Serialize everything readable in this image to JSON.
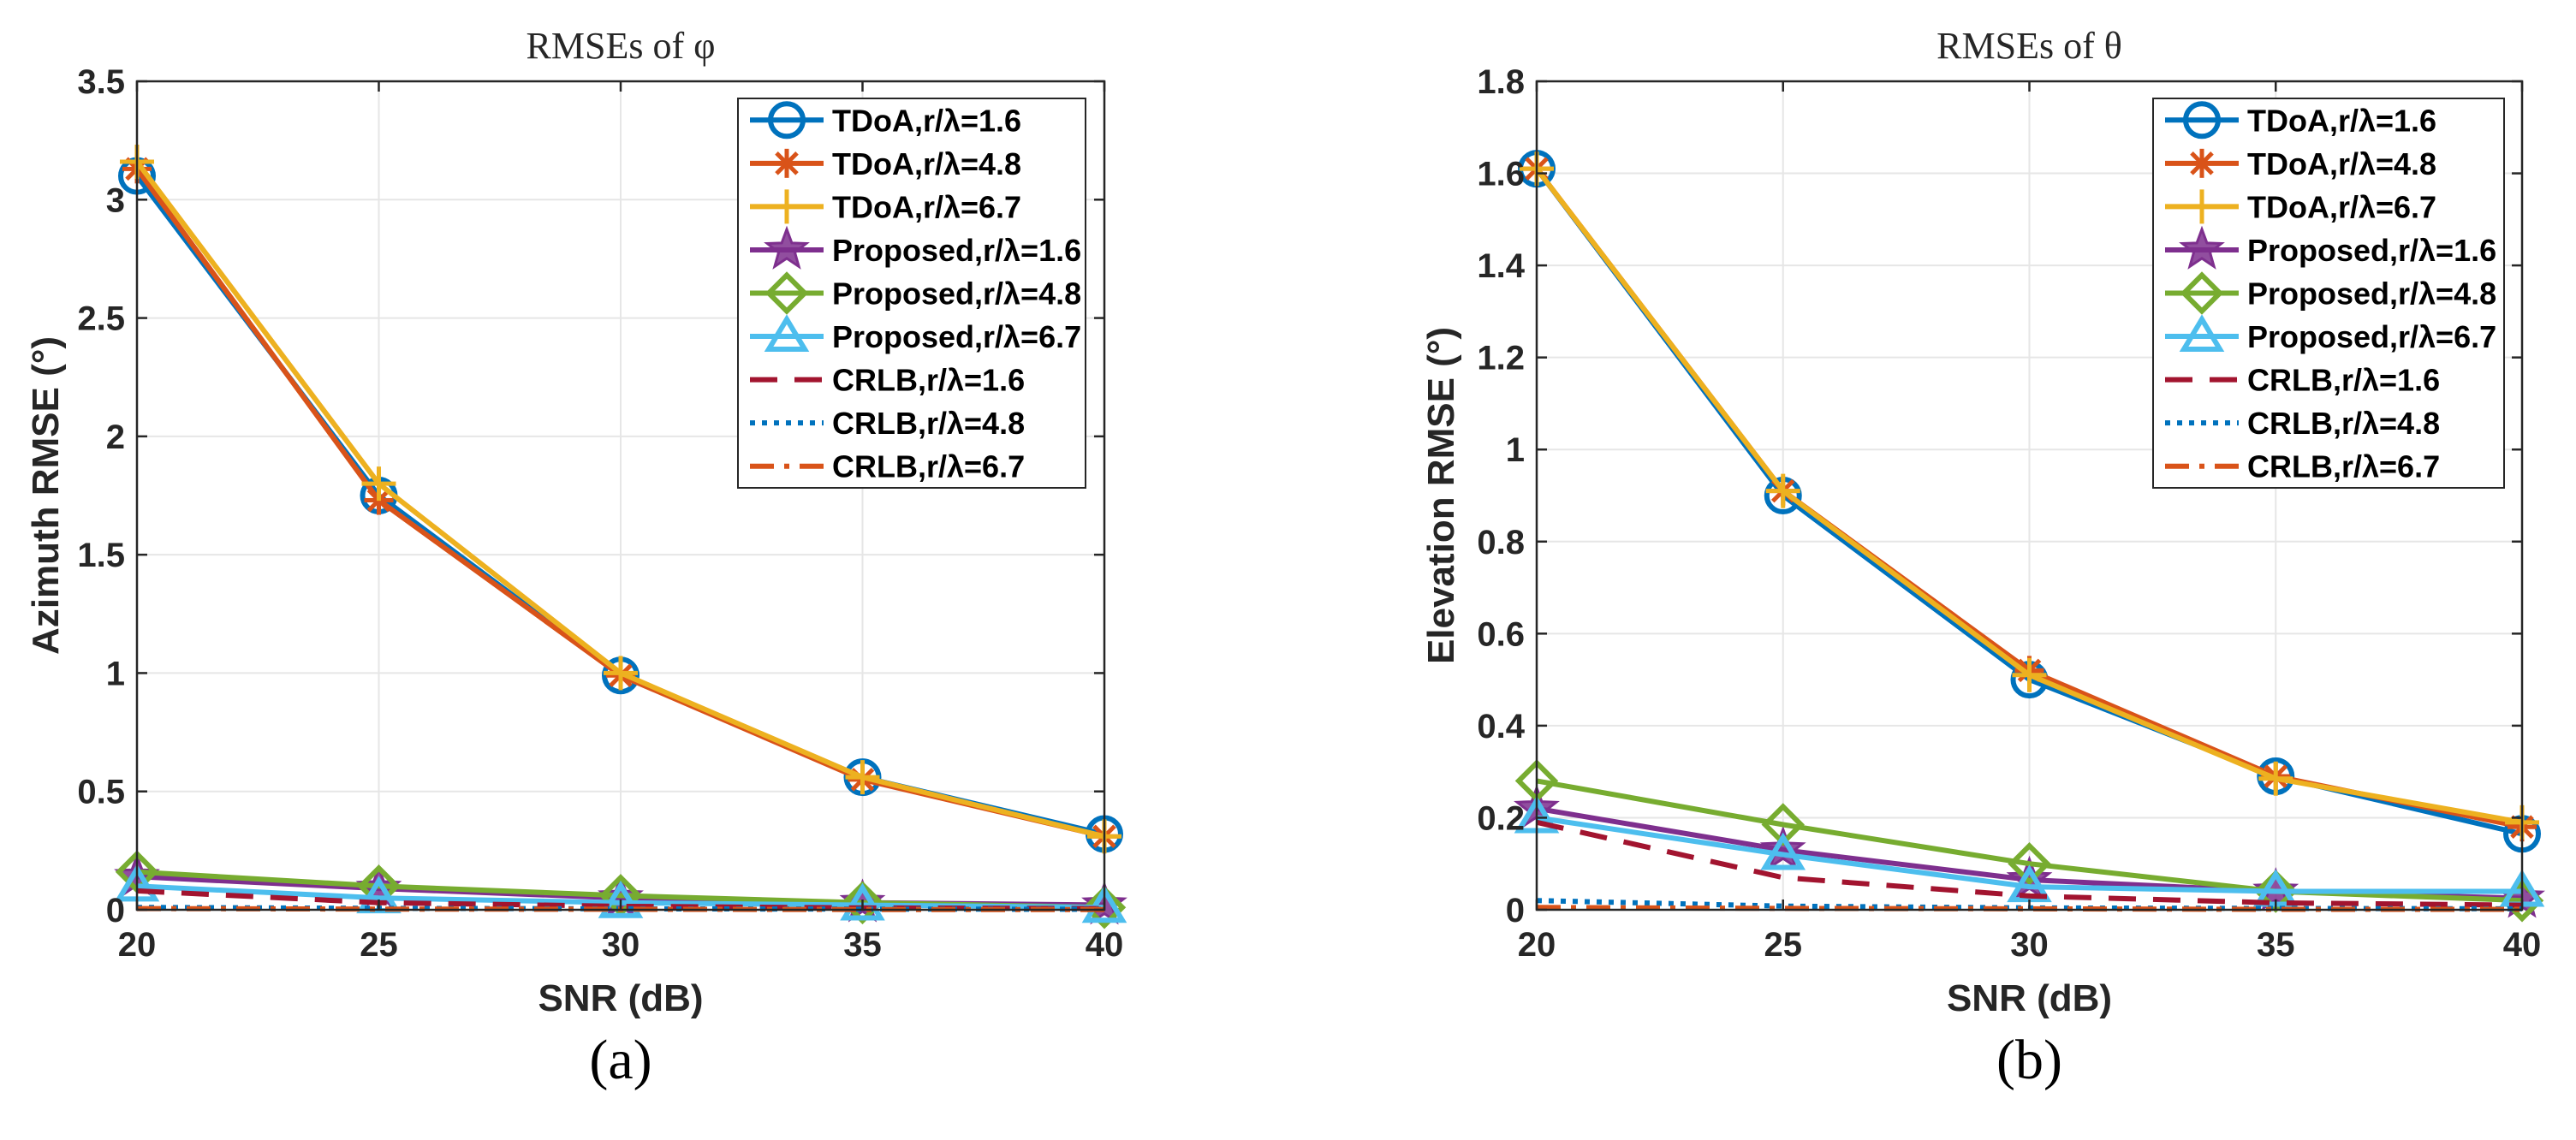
{
  "chart_data": [
    {
      "type": "line",
      "panel_label": "(a)",
      "title": "RMSEs of φ",
      "xlabel": "SNR (dB)",
      "ylabel": "Azimuth RMSE (°)",
      "x": [
        20,
        25,
        30,
        35,
        40
      ],
      "xticks": [
        "20",
        "25",
        "30",
        "35",
        "40"
      ],
      "xlim": [
        20,
        40
      ],
      "yticks": [
        "0",
        "0.5",
        "1",
        "1.5",
        "2",
        "2.5",
        "3",
        "3.5"
      ],
      "ytick_values": [
        0,
        0.5,
        1,
        1.5,
        2,
        2.5,
        3,
        3.5
      ],
      "ylim": [
        0,
        3.5
      ],
      "grid": true,
      "legend_position": "top-right",
      "series": [
        {
          "name": "TDoA,r/λ=1.6",
          "values": [
            3.1,
            1.75,
            0.99,
            0.56,
            0.32
          ],
          "color": "#0072BD",
          "marker": "circle",
          "dash": "solid"
        },
        {
          "name": "TDoA,r/λ=4.8",
          "values": [
            3.13,
            1.73,
            0.99,
            0.55,
            0.31
          ],
          "color": "#D95319",
          "marker": "asterisk",
          "dash": "solid"
        },
        {
          "name": "TDoA,r/λ=6.7",
          "values": [
            3.16,
            1.8,
            1.0,
            0.56,
            0.31
          ],
          "color": "#EDB120",
          "marker": "plus",
          "dash": "solid"
        },
        {
          "name": "Proposed,r/λ=1.6",
          "values": [
            0.14,
            0.09,
            0.05,
            0.03,
            0.02
          ],
          "color": "#7E2F8E",
          "marker": "star",
          "dash": "solid"
        },
        {
          "name": "Proposed,r/λ=4.8",
          "values": [
            0.16,
            0.1,
            0.06,
            0.03,
            0.01
          ],
          "color": "#77AC30",
          "marker": "diamond",
          "dash": "solid"
        },
        {
          "name": "Proposed,r/λ=6.7",
          "values": [
            0.1,
            0.05,
            0.03,
            0.02,
            0.01
          ],
          "color": "#4DBEEE",
          "marker": "triangle",
          "dash": "solid"
        },
        {
          "name": "CRLB,r/λ=1.6",
          "values": [
            0.08,
            0.03,
            0.015,
            0.008,
            0.005
          ],
          "color": "#A2142F",
          "marker": "none",
          "dash": "dashed"
        },
        {
          "name": "CRLB,r/λ=4.8",
          "values": [
            0.01,
            0.006,
            0.004,
            0.003,
            0.002
          ],
          "color": "#0072BD",
          "marker": "none",
          "dash": "dotted"
        },
        {
          "name": "CRLB,r/λ=6.7",
          "values": [
            0.005,
            0.003,
            0.002,
            0.001,
            0.001
          ],
          "color": "#D95319",
          "marker": "none",
          "dash": "dashdot"
        }
      ]
    },
    {
      "type": "line",
      "panel_label": "(b)",
      "title": "RMSEs of θ",
      "xlabel": "SNR (dB)",
      "ylabel": "Elevation RMSE (°)",
      "x": [
        20,
        25,
        30,
        35,
        40
      ],
      "xticks": [
        "20",
        "25",
        "30",
        "35",
        "40"
      ],
      "xlim": [
        20,
        40
      ],
      "yticks": [
        "0",
        "0.2",
        "0.4",
        "0.6",
        "0.8",
        "1",
        "1.2",
        "1.4",
        "1.6",
        "1.8"
      ],
      "ytick_values": [
        0,
        0.2,
        0.4,
        0.6,
        0.8,
        1.0,
        1.2,
        1.4,
        1.6,
        1.8
      ],
      "ylim": [
        0,
        1.8
      ],
      "grid": true,
      "legend_position": "top-right",
      "series": [
        {
          "name": "TDoA,r/λ=1.6",
          "values": [
            1.61,
            0.9,
            0.5,
            0.29,
            0.165
          ],
          "color": "#0072BD",
          "marker": "circle",
          "dash": "solid"
        },
        {
          "name": "TDoA,r/λ=4.8",
          "values": [
            1.61,
            0.91,
            0.52,
            0.29,
            0.18
          ],
          "color": "#D95319",
          "marker": "asterisk",
          "dash": "solid"
        },
        {
          "name": "TDoA,r/λ=6.7",
          "values": [
            1.61,
            0.91,
            0.51,
            0.285,
            0.19
          ],
          "color": "#EDB120",
          "marker": "plus",
          "dash": "solid"
        },
        {
          "name": "Proposed,r/λ=1.6",
          "values": [
            0.22,
            0.13,
            0.065,
            0.04,
            0.025
          ],
          "color": "#7E2F8E",
          "marker": "star",
          "dash": "solid"
        },
        {
          "name": "Proposed,r/λ=4.8",
          "values": [
            0.28,
            0.185,
            0.1,
            0.04,
            0.02
          ],
          "color": "#77AC30",
          "marker": "diamond",
          "dash": "solid"
        },
        {
          "name": "Proposed,r/λ=6.7",
          "values": [
            0.2,
            0.12,
            0.05,
            0.04,
            0.04
          ],
          "color": "#4DBEEE",
          "marker": "triangle",
          "dash": "solid"
        },
        {
          "name": "CRLB,r/λ=1.6",
          "values": [
            0.19,
            0.07,
            0.03,
            0.015,
            0.01
          ],
          "color": "#A2142F",
          "marker": "none",
          "dash": "dashed"
        },
        {
          "name": "CRLB,r/λ=4.8",
          "values": [
            0.02,
            0.008,
            0.004,
            0.003,
            0.002
          ],
          "color": "#0072BD",
          "marker": "none",
          "dash": "dotted"
        },
        {
          "name": "CRLB,r/λ=6.7",
          "values": [
            0.005,
            0.003,
            0.002,
            0.001,
            0.001
          ],
          "color": "#D95319",
          "marker": "none",
          "dash": "dashdot"
        }
      ]
    }
  ]
}
